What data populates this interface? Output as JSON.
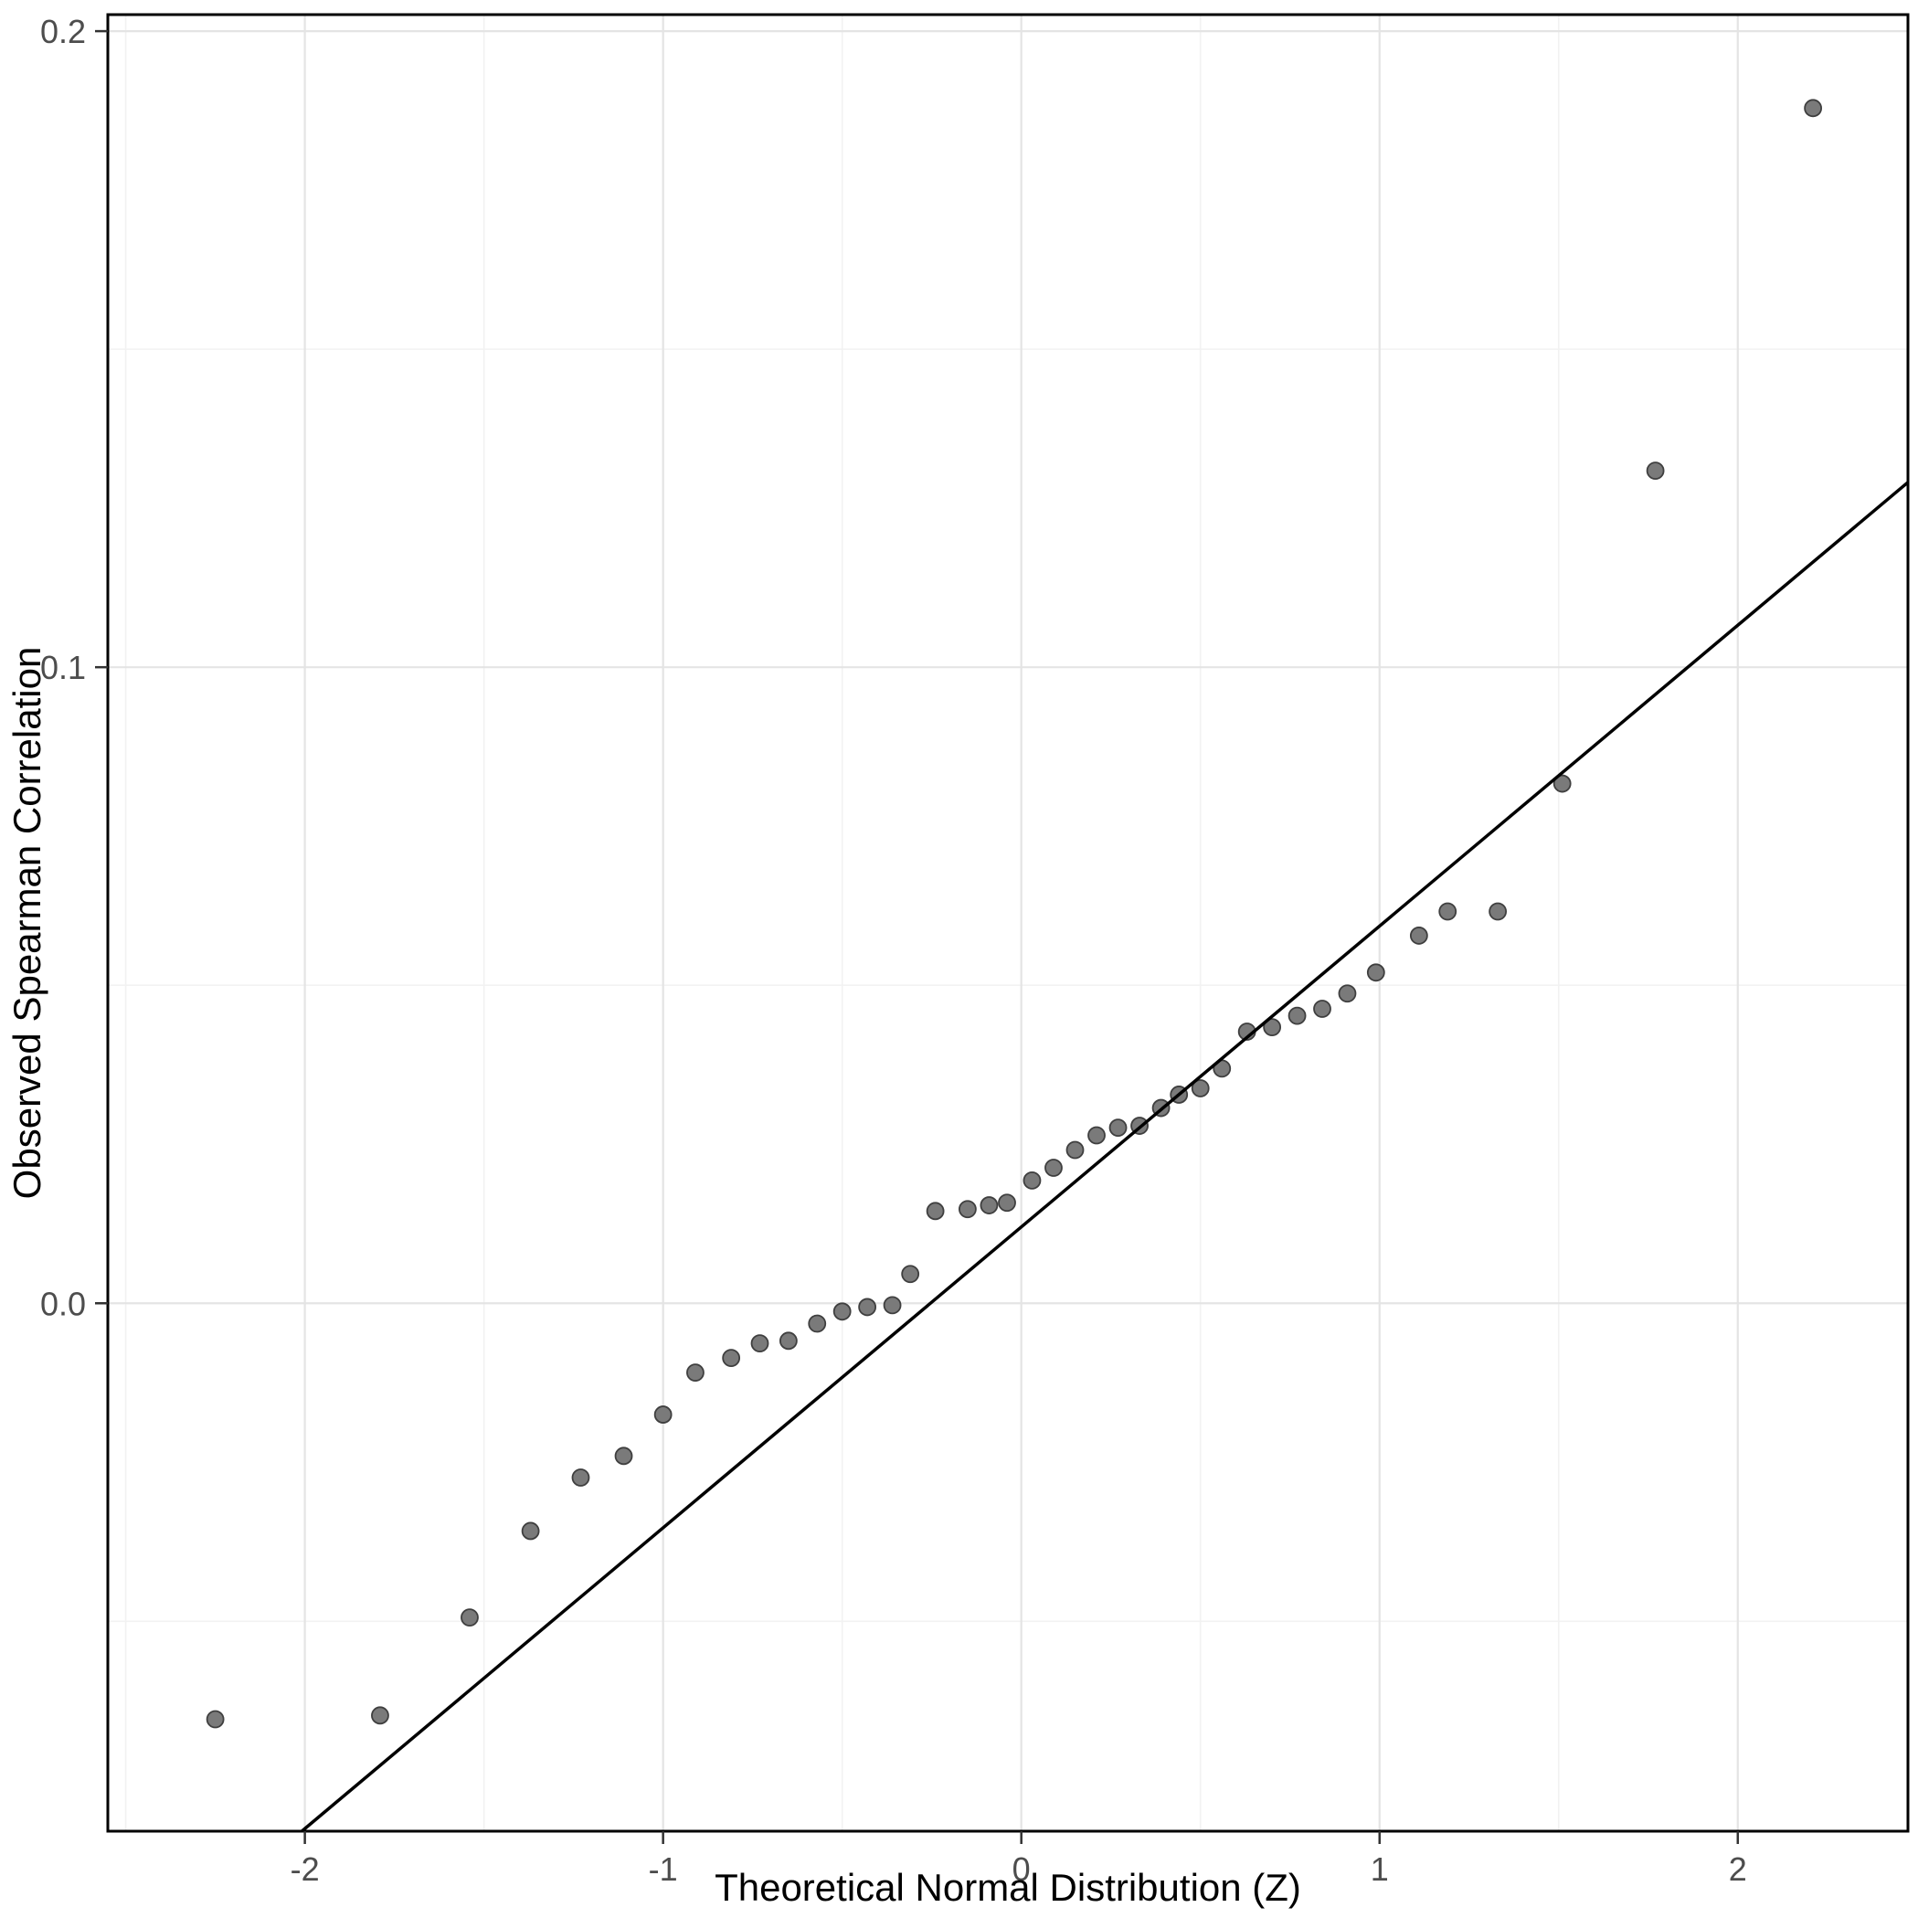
{
  "chart_data": {
    "type": "scatter",
    "title": "",
    "xlabel": "Theoretical Normal Distribution (Z)",
    "ylabel": "Observed Spearman Correlation",
    "xlim": [
      -2.55,
      2.475
    ],
    "ylim": [
      -0.083,
      0.2026
    ],
    "x_ticks": [
      -2,
      -1,
      0,
      1,
      2
    ],
    "x_tick_labels": [
      "-2",
      "-1",
      "0",
      "1",
      "2"
    ],
    "y_ticks": [
      0,
      0.1,
      0.2
    ],
    "y_tick_labels": [
      "0.0",
      "0.1",
      "0.2"
    ],
    "x_minor_ticks": [
      -2.5,
      -1.5,
      -0.5,
      0.5,
      1.5
    ],
    "y_minor_ticks": [
      -0.05,
      0.05,
      0.15
    ],
    "grid": true,
    "legend": "none",
    "points": [
      [
        -2.25,
        -0.0654
      ],
      [
        -1.79,
        -0.0648
      ],
      [
        -1.54,
        -0.0494
      ],
      [
        -1.37,
        -0.0358
      ],
      [
        -1.23,
        -0.0274
      ],
      [
        -1.11,
        -0.024
      ],
      [
        -1.0,
        -0.0175
      ],
      [
        -0.91,
        -0.0109
      ],
      [
        -0.81,
        -0.0086
      ],
      [
        -0.73,
        -0.0063
      ],
      [
        -0.65,
        -0.0059
      ],
      [
        -0.57,
        -0.0032
      ],
      [
        -0.5,
        -0.0013
      ],
      [
        -0.43,
        -0.0006
      ],
      [
        -0.36,
        -0.0003
      ],
      [
        -0.31,
        0.0046
      ],
      [
        -0.24,
        0.0145
      ],
      [
        -0.15,
        0.0148
      ],
      [
        -0.09,
        0.0154
      ],
      [
        -0.04,
        0.0158
      ],
      [
        0.03,
        0.0193
      ],
      [
        0.09,
        0.0213
      ],
      [
        0.15,
        0.0241
      ],
      [
        0.21,
        0.0264
      ],
      [
        0.27,
        0.0276
      ],
      [
        0.33,
        0.0279
      ],
      [
        0.39,
        0.0307
      ],
      [
        0.44,
        0.0328
      ],
      [
        0.5,
        0.0338
      ],
      [
        0.56,
        0.0369
      ],
      [
        0.63,
        0.0427
      ],
      [
        0.7,
        0.0434
      ],
      [
        0.77,
        0.0452
      ],
      [
        0.84,
        0.0463
      ],
      [
        0.91,
        0.0487
      ],
      [
        0.99,
        0.052
      ],
      [
        1.11,
        0.0578
      ],
      [
        1.19,
        0.0616
      ],
      [
        1.33,
        0.0616
      ],
      [
        1.51,
        0.0817
      ],
      [
        1.77,
        0.1309
      ],
      [
        2.21,
        0.1879
      ]
    ],
    "reference_line": {
      "slope": 0.0473,
      "intercept": 0.012
    },
    "colors": {
      "background": "#ffffff",
      "panel_background": "#ffffff",
      "grid_major": "#e4e4e4",
      "grid_minor": "#f2f2f2",
      "panel_border": "#000000",
      "point_fill": "#7a7a7a",
      "point_stroke": "#3f3f3f",
      "line": "#000000",
      "tick_mark": "#333333",
      "tick_label": "#4d4d4d",
      "axis_title": "#000000"
    }
  }
}
